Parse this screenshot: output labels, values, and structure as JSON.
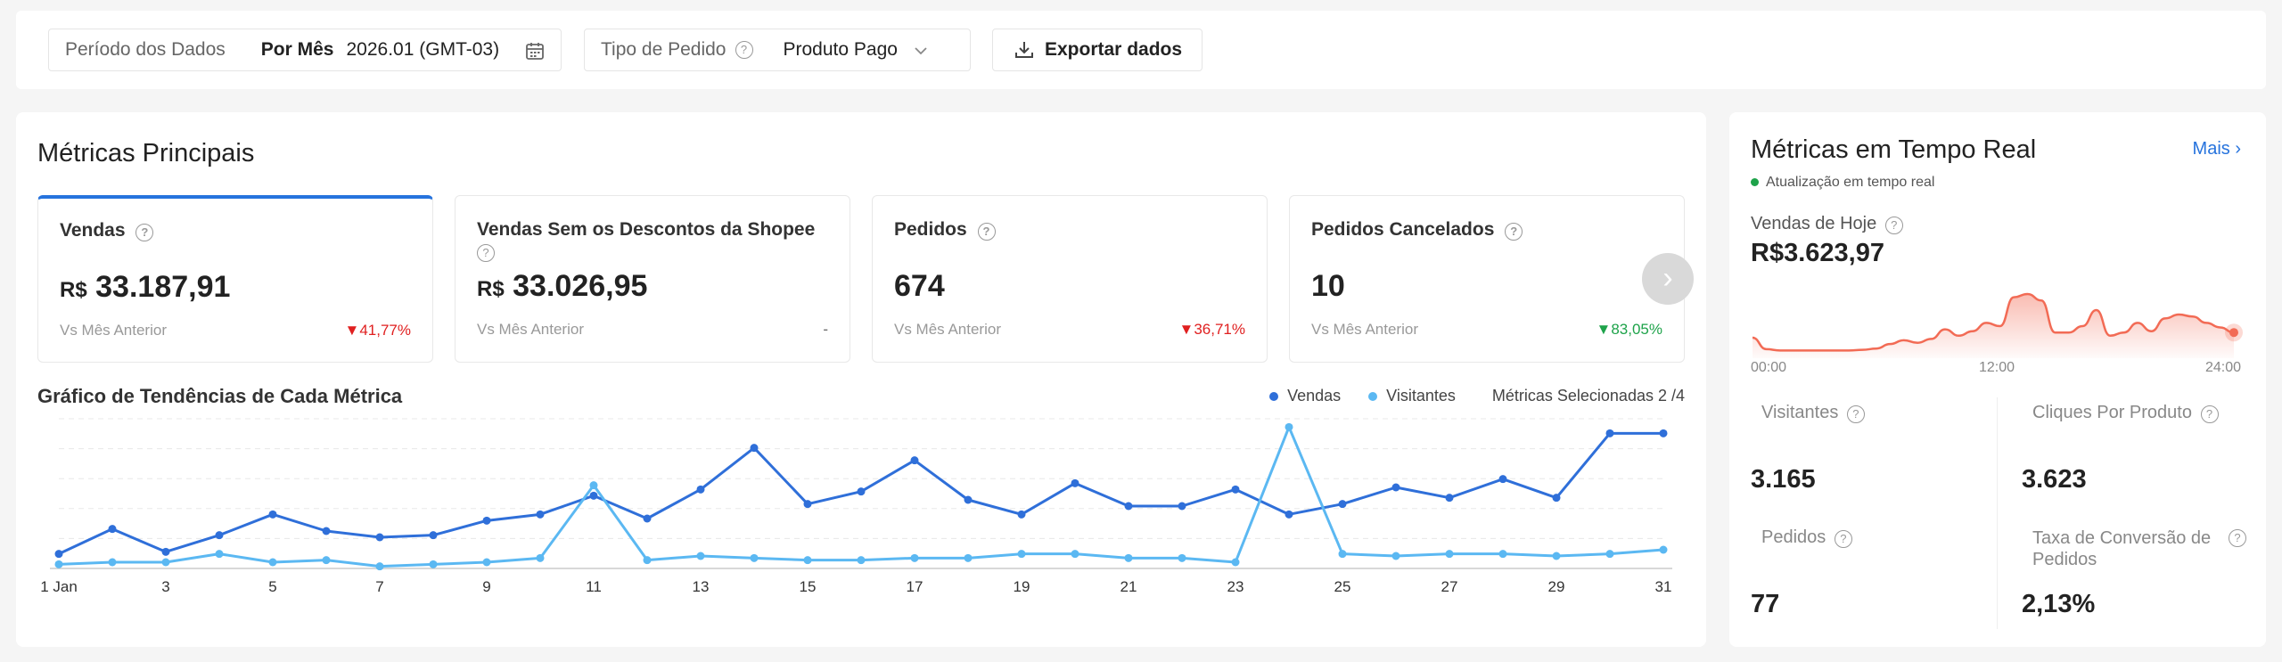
{
  "filters": {
    "period_label": "Período dos Dados",
    "period_mode": "Por Mês",
    "period_value": "2026.01 (GMT-03)",
    "order_type_label": "Tipo de Pedido",
    "order_type_value": "Produto Pago",
    "export_label": "Exportar dados"
  },
  "main": {
    "title": "Métricas Principais",
    "metrics": [
      {
        "title": "Vendas",
        "currency": "R$",
        "value": "33.187,91",
        "compare": "Vs Mês Anterior",
        "change": "41,77%",
        "direction": "down"
      },
      {
        "title": "Vendas Sem os Descontos da Shopee",
        "currency": "R$",
        "value": "33.026,95",
        "compare": "Vs Mês Anterior",
        "change": "-",
        "direction": "none"
      },
      {
        "title": "Pedidos",
        "currency": "",
        "value": "674",
        "compare": "Vs Mês Anterior",
        "change": "36,71%",
        "direction": "down"
      },
      {
        "title": "Pedidos Cancelados",
        "currency": "",
        "value": "10",
        "compare": "Vs Mês Anterior",
        "change": "83,05%",
        "direction": "up"
      }
    ],
    "trend_title": "Gráfico de Tendências de Cada Métrica",
    "selected_metrics": "Métricas Selecionadas 2 /4"
  },
  "colors": {
    "vendas": "#2f6fd9",
    "visitantes": "#5bb8f2",
    "accent": "#2673dd",
    "realtime_line": "#f26b55"
  },
  "chart_data": {
    "type": "line",
    "x": [
      "1 Jan",
      "2",
      "3",
      "4",
      "5",
      "6",
      "7",
      "8",
      "9",
      "10",
      "11",
      "12",
      "13",
      "14",
      "15",
      "16",
      "17",
      "18",
      "19",
      "20",
      "21",
      "22",
      "23",
      "24",
      "25",
      "26",
      "27",
      "28",
      "29",
      "30",
      "31"
    ],
    "x_tick_labels": [
      "1 Jan",
      "3",
      "5",
      "7",
      "9",
      "11",
      "13",
      "15",
      "17",
      "19",
      "21",
      "23",
      "25",
      "27",
      "29",
      "31"
    ],
    "series": [
      {
        "name": "Vendas",
        "values": [
          0.7,
          1.9,
          0.8,
          1.6,
          2.6,
          1.8,
          1.5,
          1.6,
          2.3,
          2.6,
          3.5,
          2.4,
          3.8,
          5.8,
          3.1,
          3.7,
          5.2,
          3.3,
          2.6,
          4.1,
          3.0,
          3.0,
          3.8,
          2.6,
          3.1,
          3.9,
          3.4,
          4.3,
          3.4,
          6.5,
          6.5
        ]
      },
      {
        "name": "Visitantes",
        "values": [
          0.2,
          0.3,
          0.3,
          0.7,
          0.3,
          0.4,
          0.1,
          0.2,
          0.3,
          0.5,
          4.0,
          0.4,
          0.6,
          0.5,
          0.4,
          0.4,
          0.5,
          0.5,
          0.7,
          0.7,
          0.5,
          0.5,
          0.3,
          6.8,
          0.7,
          0.6,
          0.7,
          0.7,
          0.6,
          0.7,
          0.9
        ]
      }
    ],
    "grid": true
  },
  "realtime": {
    "title": "Métricas em Tempo Real",
    "more_label": "Mais",
    "update_note": "Atualização em tempo real",
    "sales_label": "Vendas de Hoje",
    "sales_value": "R$3.623,97",
    "time_ticks": [
      "00:00",
      "12:00",
      "24:00"
    ],
    "trend": [
      0.32,
      0.14,
      0.12,
      0.12,
      0.12,
      0.12,
      0.12,
      0.12,
      0.13,
      0.15,
      0.22,
      0.28,
      0.24,
      0.3,
      0.45,
      0.35,
      0.42,
      0.55,
      0.5,
      0.95,
      1.0,
      0.9,
      0.4,
      0.4,
      0.5,
      0.75,
      0.35,
      0.4,
      0.55,
      0.42,
      0.62,
      0.68,
      0.65,
      0.55,
      0.48,
      0.4
    ],
    "items": [
      {
        "label": "Visitantes",
        "value": "3.165"
      },
      {
        "label": "Cliques Por Produto",
        "value": "3.623"
      },
      {
        "label": "Pedidos",
        "value": "77"
      },
      {
        "label": "Taxa de Conversão de Pedidos",
        "value": "2,13%"
      }
    ]
  }
}
